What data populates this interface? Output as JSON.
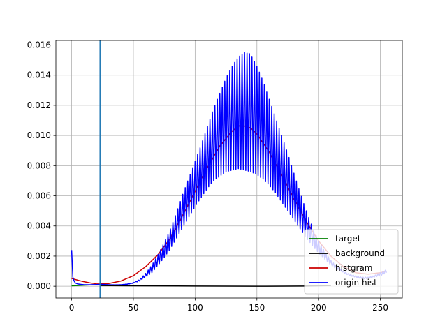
{
  "chart_data": {
    "type": "line",
    "title": "",
    "xlabel": "",
    "ylabel": "",
    "xlim": [
      -12.75,
      267.75
    ],
    "ylim": [
      -0.00078,
      0.0163
    ],
    "grid": true,
    "x_ticks": [
      0,
      50,
      100,
      150,
      200,
      250
    ],
    "x_tick_labels": [
      "0",
      "50",
      "100",
      "150",
      "200",
      "250"
    ],
    "y_ticks": [
      0.0,
      0.002,
      0.004,
      0.006,
      0.008,
      0.01,
      0.012,
      0.014,
      0.016
    ],
    "y_tick_labels": [
      "0.000",
      "0.002",
      "0.004",
      "0.006",
      "0.008",
      "0.010",
      "0.012",
      "0.014",
      "0.016"
    ],
    "vline": {
      "x": 23,
      "color": "#1f77b4"
    },
    "legend": {
      "position": "lower-right",
      "entries": [
        {
          "label": "target",
          "color": "#008000"
        },
        {
          "label": "background",
          "color": "#000000"
        },
        {
          "label": "histgram",
          "color": "#cc0000"
        },
        {
          "label": "origin hist",
          "color": "#0000ff"
        }
      ]
    },
    "series": [
      {
        "name": "target",
        "color": "#008000",
        "x": [
          0,
          5,
          10,
          15,
          20,
          23
        ],
        "y": [
          3e-05,
          5e-05,
          7e-05,
          9e-05,
          0.0001,
          0.00011
        ]
      },
      {
        "name": "background",
        "color": "#000000",
        "x": [
          23,
          50,
          100,
          150,
          190,
          200,
          210
        ],
        "y": [
          5e-05,
          3e-05,
          1e-05,
          0.0,
          1e-05,
          3e-05,
          5e-05
        ]
      },
      {
        "name": "histgram",
        "color": "#cc0000",
        "x": [
          0,
          5,
          10,
          15,
          20,
          23,
          30,
          40,
          50,
          60,
          70,
          80,
          90,
          100,
          110,
          120,
          130,
          137,
          145,
          150,
          160,
          170,
          180,
          190,
          200,
          210,
          220,
          230,
          240,
          250,
          255
        ],
        "y": [
          0.00052,
          0.0004,
          0.0003,
          0.00022,
          0.00016,
          0.00015,
          0.00018,
          0.00035,
          0.0007,
          0.0013,
          0.0021,
          0.0032,
          0.0047,
          0.0063,
          0.0079,
          0.0093,
          0.0103,
          0.0107,
          0.0105,
          0.0101,
          0.0089,
          0.0074,
          0.0058,
          0.0043,
          0.003,
          0.002,
          0.0013,
          0.0009,
          0.0008,
          0.0009,
          0.001
        ]
      },
      {
        "name": "origin hist",
        "color": "#0000ff",
        "x": [
          0,
          1,
          2,
          3,
          5,
          8,
          10,
          15,
          20,
          23,
          25,
          30,
          35,
          40,
          45,
          50,
          55,
          60,
          65,
          70,
          75,
          80,
          85,
          90,
          95,
          100,
          105,
          110,
          115,
          120,
          125,
          130,
          135,
          140,
          145,
          150,
          155,
          160,
          165,
          170,
          175,
          180,
          185,
          190,
          195,
          200,
          205,
          210,
          215,
          220,
          225,
          230,
          235,
          240,
          245,
          250,
          255
        ],
        "y": [
          0.0024,
          0.0006,
          0.00035,
          0.00022,
          0.00015,
          0.00012,
          0.0001,
          0.0001,
          0.00011,
          0.00012,
          0.00012,
          0.0001,
          9e-05,
          0.0001,
          0.00015,
          0.00025,
          0.00045,
          0.00085,
          0.0014,
          0.0021,
          0.0029,
          0.0038,
          0.0049,
          0.0061,
          0.0072,
          0.0083,
          0.0094,
          0.0106,
          0.0118,
          0.0128,
          0.0138,
          0.0146,
          0.0152,
          0.0155,
          0.0154,
          0.0146,
          0.0136,
          0.0124,
          0.0112,
          0.01,
          0.0088,
          0.0075,
          0.0062,
          0.005,
          0.0039,
          0.003,
          0.0023,
          0.0017,
          0.0013,
          0.001,
          0.0008,
          0.0007,
          0.0006,
          0.0006,
          0.0007,
          0.0009,
          0.0011
        ],
        "y_low": [
          0.0024,
          0.0006,
          0.00035,
          0.00022,
          0.00015,
          0.00012,
          0.0001,
          0.0001,
          0.00011,
          0.00012,
          0.00012,
          0.0001,
          9e-05,
          0.0001,
          0.00013,
          0.0002,
          0.00035,
          0.0006,
          0.0009,
          0.0014,
          0.0019,
          0.0025,
          0.0032,
          0.0039,
          0.0046,
          0.0053,
          0.0059,
          0.0065,
          0.007,
          0.0073,
          0.0076,
          0.0077,
          0.0078,
          0.0077,
          0.0076,
          0.0074,
          0.0071,
          0.0067,
          0.0062,
          0.0056,
          0.005,
          0.0044,
          0.0038,
          0.0032,
          0.0027,
          0.0022,
          0.0018,
          0.0014,
          0.0011,
          0.0009,
          0.0007,
          0.0006,
          0.0005,
          0.0005,
          0.0006,
          0.0007,
          0.0009
        ]
      }
    ]
  }
}
